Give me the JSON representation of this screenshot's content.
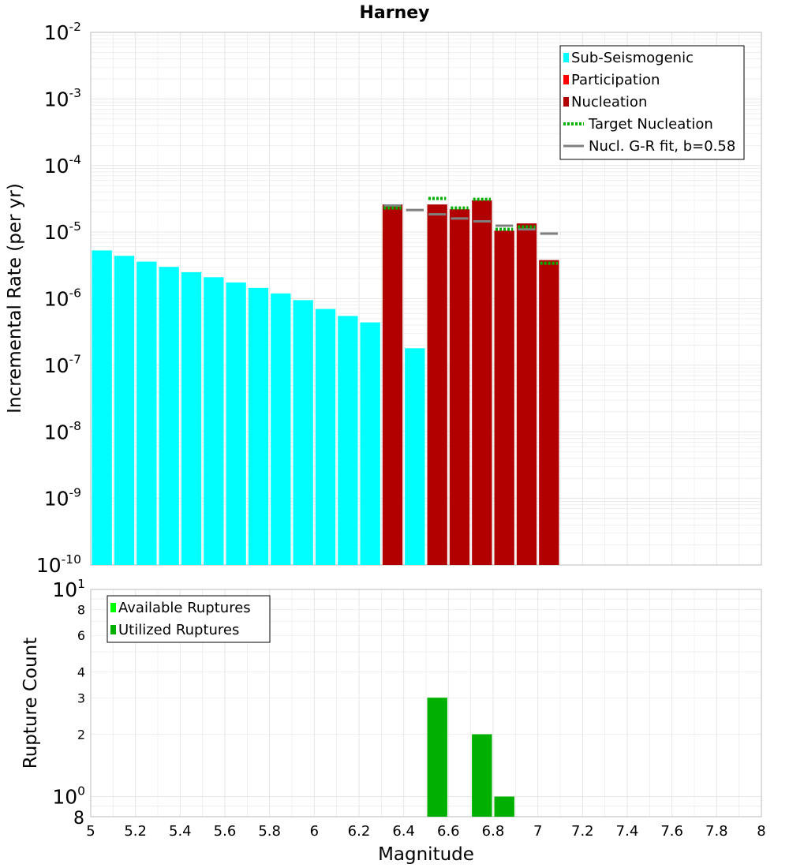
{
  "title": "Harney",
  "x_axis": {
    "label": "Magnitude",
    "range": [
      5,
      8
    ],
    "ticks": [
      "5",
      "5.2",
      "5.4",
      "5.6",
      "5.8",
      "6",
      "6.2",
      "6.4",
      "6.6",
      "6.8",
      "7",
      "7.2",
      "7.4",
      "7.6",
      "7.8",
      "8"
    ]
  },
  "colors": {
    "sub_seismogenic": "#00ffff",
    "participation": "#ff0000",
    "nucleation": "#b20000",
    "target_nucleation": "#00b000",
    "gr_fit": "#808080",
    "gr_fit_overlay": "#111111",
    "available_ruptures": "#00ff00",
    "utilized_ruptures": "#00b000",
    "grid": "#e6e6e6",
    "frame": "#bbbbbb"
  },
  "chart_data": [
    {
      "type": "bar",
      "panel": "rates",
      "ylabel": "Incremental Rate (per yr)",
      "y_scale": "log",
      "ylim": [
        1e-10,
        0.01
      ],
      "y_ticks": [
        {
          "base": "10",
          "exp": "-2"
        },
        {
          "base": "10",
          "exp": "-3"
        },
        {
          "base": "10",
          "exp": "-4"
        },
        {
          "base": "10",
          "exp": "-5"
        },
        {
          "base": "10",
          "exp": "-6"
        },
        {
          "base": "10",
          "exp": "-7"
        },
        {
          "base": "10",
          "exp": "-8"
        },
        {
          "base": "10",
          "exp": "-9"
        },
        {
          "base": "10",
          "exp": "-10"
        }
      ],
      "bin_width": 0.1,
      "series": [
        {
          "name": "Sub-Seismogenic",
          "kind": "bar",
          "color": "#00ffff",
          "points": [
            {
              "x": 5.05,
              "y": 5.3e-06
            },
            {
              "x": 5.15,
              "y": 4.4e-06
            },
            {
              "x": 5.25,
              "y": 3.6e-06
            },
            {
              "x": 5.35,
              "y": 3e-06
            },
            {
              "x": 5.45,
              "y": 2.5e-06
            },
            {
              "x": 5.55,
              "y": 2.1e-06
            },
            {
              "x": 5.65,
              "y": 1.75e-06
            },
            {
              "x": 5.75,
              "y": 1.45e-06
            },
            {
              "x": 5.85,
              "y": 1.2e-06
            },
            {
              "x": 5.95,
              "y": 9.5e-07
            },
            {
              "x": 6.05,
              "y": 7e-07
            },
            {
              "x": 6.15,
              "y": 5.5e-07
            },
            {
              "x": 6.25,
              "y": 4.4e-07
            },
            {
              "x": 6.45,
              "y": 1.8e-07
            }
          ]
        },
        {
          "name": "Participation",
          "kind": "bar",
          "color": "#ff0000",
          "points": []
        },
        {
          "name": "Nucleation",
          "kind": "bar",
          "color": "#b20000",
          "points": [
            {
              "x": 6.35,
              "y": 2.6e-05
            },
            {
              "x": 6.55,
              "y": 2.6e-05
            },
            {
              "x": 6.65,
              "y": 2.2e-05
            },
            {
              "x": 6.75,
              "y": 3e-05
            },
            {
              "x": 6.85,
              "y": 1.05e-05
            },
            {
              "x": 6.95,
              "y": 1.35e-05
            },
            {
              "x": 7.05,
              "y": 3.8e-06
            }
          ]
        },
        {
          "name": "Target Nucleation",
          "kind": "dotted-step",
          "color": "#00b000",
          "points": [
            {
              "x": 6.35,
              "y": 2.3e-05
            },
            {
              "x": 6.55,
              "y": 3.2e-05
            },
            {
              "x": 6.65,
              "y": 2.3e-05
            },
            {
              "x": 6.75,
              "y": 3.1e-05
            },
            {
              "x": 6.85,
              "y": 1.1e-05
            },
            {
              "x": 6.95,
              "y": 1.2e-05
            },
            {
              "x": 7.05,
              "y": 3.4e-06
            }
          ]
        },
        {
          "name": "Nucl. G-R fit, b=0.58",
          "kind": "solid-step",
          "color": "#808080",
          "points": [
            {
              "x": 6.35,
              "y": 2.5e-05
            },
            {
              "x": 6.45,
              "y": 2.15e-05
            },
            {
              "x": 6.55,
              "y": 1.85e-05
            },
            {
              "x": 6.65,
              "y": 1.6e-05
            },
            {
              "x": 6.75,
              "y": 1.45e-05
            },
            {
              "x": 6.85,
              "y": 1.25e-05
            },
            {
              "x": 6.95,
              "y": 1.1e-05
            },
            {
              "x": 7.05,
              "y": 9.5e-06
            }
          ]
        }
      ],
      "legend": {
        "placement": "top-right",
        "entries": [
          "Sub-Seismogenic",
          "Participation",
          "Nucleation",
          "Target Nucleation",
          "Nucl. G-R fit, b=0.58"
        ]
      }
    },
    {
      "type": "bar",
      "panel": "counts",
      "ylabel": "Rupture Count",
      "y_scale": "log",
      "ylim": [
        0.8,
        10
      ],
      "y_ticks": [
        {
          "value": 10,
          "base": "10",
          "exp": "1"
        },
        {
          "value": 8,
          "label": "8"
        },
        {
          "value": 6,
          "label": "6"
        },
        {
          "value": 4,
          "label": "4"
        },
        {
          "value": 3,
          "label": "3"
        },
        {
          "value": 2,
          "label": "2"
        },
        {
          "value": 1,
          "base": "10",
          "exp": "0"
        },
        {
          "value": 0.8,
          "label": "8"
        }
      ],
      "bin_width": 0.1,
      "series": [
        {
          "name": "Available Ruptures",
          "color": "#00ff00",
          "points": [
            {
              "x": 6.55,
              "y": 3
            },
            {
              "x": 6.75,
              "y": 2
            },
            {
              "x": 6.85,
              "y": 1
            }
          ]
        },
        {
          "name": "Utilized Ruptures",
          "color": "#00b000",
          "points": [
            {
              "x": 6.55,
              "y": 3
            },
            {
              "x": 6.75,
              "y": 2
            },
            {
              "x": 6.85,
              "y": 1
            }
          ]
        }
      ],
      "legend": {
        "placement": "top-left",
        "entries": [
          "Available Ruptures",
          "Utilized Ruptures"
        ]
      }
    }
  ]
}
